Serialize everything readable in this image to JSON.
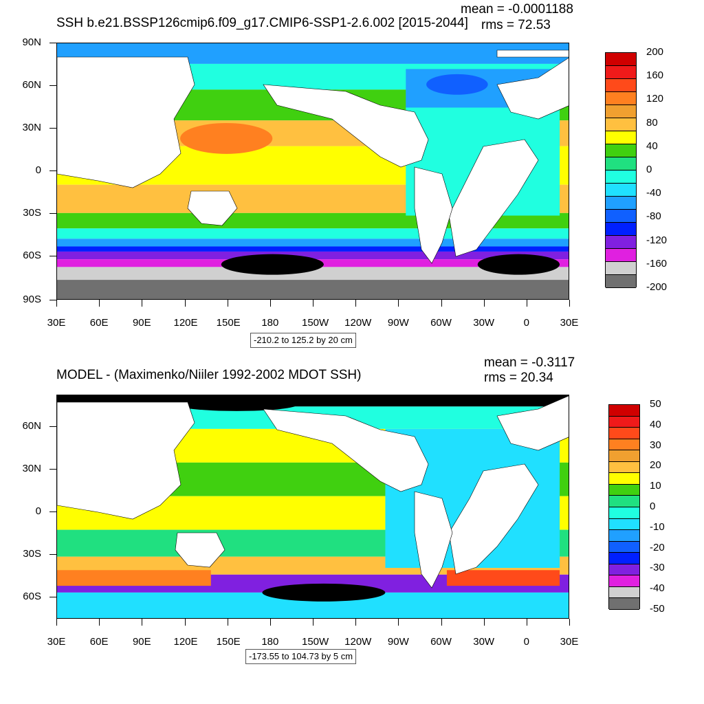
{
  "panels": [
    {
      "title": "SSH b.e21.BSSP126cmip6.f09_g17.CMIP6-SSP1-2.6.002 [2015-2044]",
      "mean_label": "mean = -0.0001188",
      "rms_label": "rms = 72.53",
      "range_label": "-210.2 to 125.2 by 20 cm",
      "y_ticks": [
        "90N",
        "60N",
        "30N",
        "0",
        "30S",
        "60S",
        "90S"
      ],
      "x_ticks": [
        "30E",
        "60E",
        "90E",
        "120E",
        "150E",
        "180",
        "150W",
        "120W",
        "90W",
        "60W",
        "30W",
        "0",
        "30E"
      ],
      "colorbar_labels": [
        "200",
        "160",
        "120",
        "80",
        "40",
        "0",
        "-40",
        "-80",
        "-120",
        "-160",
        "-200"
      ],
      "colors": [
        "#d00000",
        "#f01a1a",
        "#ff4a1a",
        "#ff8020",
        "#f0a030",
        "#ffc040",
        "#ffff00",
        "#40d010",
        "#20e080",
        "#20ffe0",
        "#20e0ff",
        "#20a0ff",
        "#1060ff",
        "#0020ff",
        "#8020e0",
        "#e020e0",
        "#d0d0d0",
        "#707070"
      ]
    },
    {
      "title": "MODEL - (Maximenko/Niiler 1992-2002 MDOT SSH)",
      "mean_label": "mean = -0.3117",
      "rms_label": "rms = 20.34",
      "range_label": "-173.55 to 104.73 by 5 cm",
      "y_ticks": [
        "60N",
        "30N",
        "0",
        "30S",
        "60S"
      ],
      "x_ticks": [
        "30E",
        "60E",
        "90E",
        "120E",
        "150E",
        "180",
        "150W",
        "120W",
        "90W",
        "60W",
        "30W",
        "0",
        "30E"
      ],
      "colorbar_labels": [
        "50",
        "40",
        "30",
        "20",
        "10",
        "0",
        "-10",
        "-20",
        "-30",
        "-40",
        "-50"
      ],
      "colors": [
        "#d00000",
        "#f01a1a",
        "#ff4a1a",
        "#ff8020",
        "#f0a030",
        "#ffc040",
        "#ffff00",
        "#40d010",
        "#20e080",
        "#20ffe0",
        "#20e0ff",
        "#20a0ff",
        "#1060ff",
        "#0020ff",
        "#8020e0",
        "#e020e0",
        "#d0d0d0",
        "#707070"
      ]
    }
  ]
}
